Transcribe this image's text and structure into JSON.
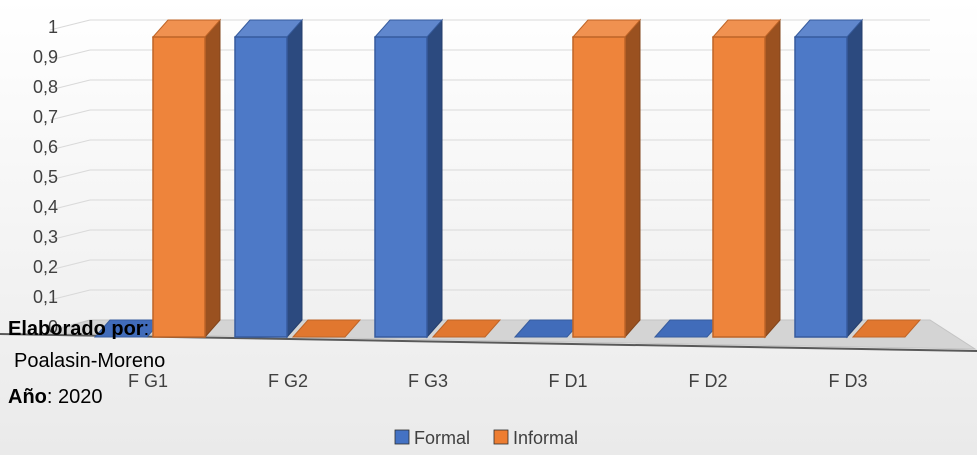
{
  "chart_data": {
    "type": "bar",
    "title": "",
    "xlabel": "",
    "ylabel": "",
    "categories": [
      "F G1",
      "F G2",
      "F G3",
      "F D1",
      "F D2",
      "F D3"
    ],
    "y_ticks": [
      "0",
      "0,1",
      "0,2",
      "0,3",
      "0,4",
      "0,5",
      "0,6",
      "0,7",
      "0,8",
      "0,9",
      "1"
    ],
    "ylim": [
      0,
      1
    ],
    "grid": true,
    "legend_position": "bottom",
    "series": [
      {
        "name": "Formal",
        "color": "#4472C4",
        "values": [
          0,
          1,
          1,
          0,
          0,
          1
        ]
      },
      {
        "name": "Informal",
        "color": "#ED7D31",
        "values": [
          1,
          0,
          0,
          1,
          1,
          0
        ]
      }
    ]
  },
  "credits": {
    "author_label": "Elaborado por",
    "author_sep": ":",
    "author_name": "Poalasin-Moreno",
    "year_label": "Año",
    "year_sep": ": ",
    "year_value": "2020"
  }
}
